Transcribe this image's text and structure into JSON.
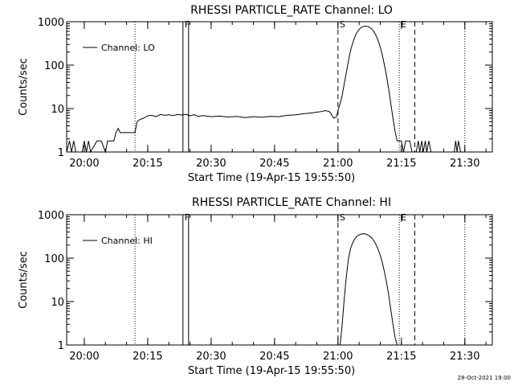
{
  "footer": {
    "timestamp": "28-Oct-2021 19:00"
  },
  "chart_data": [
    {
      "type": "line",
      "title": "RHESSI PARTICLE_RATE Channel: LO",
      "xlabel": "Start Time (19-Apr-15 19:55:50)",
      "ylabel": "Counts/sec",
      "y_scale": "log",
      "ylim": [
        1,
        1000
      ],
      "xlim": [
        "19:55:50",
        "21:36:30"
      ],
      "x_ticks": [
        "20:00",
        "20:15",
        "20:30",
        "20:45",
        "21:00",
        "21:15",
        "21:30"
      ],
      "y_ticks": [
        "1",
        "10",
        "100",
        "1000"
      ],
      "legend": {
        "position": "top-left",
        "entries": [
          "Channel: LO"
        ]
      },
      "markers": [
        {
          "label": "F",
          "time": "20:23:20",
          "style": "solid"
        },
        {
          "label": "",
          "time": "20:24:40",
          "style": "solid"
        },
        {
          "label": "S",
          "time": "21:00:00",
          "style": "dashed"
        },
        {
          "label": "E",
          "time": "21:14:30",
          "style": "dotted"
        },
        {
          "label": "",
          "time": "21:18:10",
          "style": "dashed"
        },
        {
          "label": "",
          "time": "20:12:00",
          "style": "dotted"
        },
        {
          "label": "",
          "time": "21:30:00",
          "style": "dotted"
        }
      ],
      "series": [
        {
          "name": "Channel: LO",
          "points": [
            [
              "19:55:50",
              1
            ],
            [
              "19:56:30",
              1.8
            ],
            [
              "19:57:00",
              1
            ],
            [
              "19:57:30",
              1.8
            ],
            [
              "19:58:00",
              1
            ],
            [
              "19:59:30",
              1
            ],
            [
              "20:00:00",
              1.8
            ],
            [
              "20:00:30",
              1
            ],
            [
              "20:01:00",
              1.8
            ],
            [
              "20:01:30",
              1
            ],
            [
              "20:03:00",
              1.8
            ],
            [
              "20:04:00",
              1.8
            ],
            [
              "20:05:00",
              1
            ],
            [
              "20:05:30",
              1.8
            ],
            [
              "20:06:00",
              1.8
            ],
            [
              "20:07:00",
              1.8
            ],
            [
              "20:07:30",
              2.8
            ],
            [
              "20:08:00",
              3.5
            ],
            [
              "20:08:30",
              2.8
            ],
            [
              "20:10:00",
              2.8
            ],
            [
              "20:12:00",
              2.8
            ],
            [
              "20:12:30",
              5
            ],
            [
              "20:13:00",
              5.5
            ],
            [
              "20:14:00",
              6
            ],
            [
              "20:15:00",
              6.8
            ],
            [
              "20:16:00",
              7
            ],
            [
              "20:17:00",
              6.5
            ],
            [
              "20:18:00",
              7.3
            ],
            [
              "20:19:00",
              7
            ],
            [
              "20:20:00",
              7.2
            ],
            [
              "20:21:00",
              6.9
            ],
            [
              "20:22:00",
              7.3
            ],
            [
              "20:23:00",
              7.1
            ],
            [
              "20:24:00",
              7.4
            ],
            [
              "20:25:00",
              6.8
            ],
            [
              "20:26:00",
              7.2
            ],
            [
              "20:27:00",
              6.6
            ],
            [
              "20:28:00",
              6.9
            ],
            [
              "20:30:00",
              6.5
            ],
            [
              "20:32:00",
              6.7
            ],
            [
              "20:34:00",
              6.4
            ],
            [
              "20:36:00",
              6.6
            ],
            [
              "20:38:00",
              6.2
            ],
            [
              "20:40:00",
              6.5
            ],
            [
              "20:42:00",
              6.3
            ],
            [
              "20:44:00",
              6.6
            ],
            [
              "20:46:00",
              6.5
            ],
            [
              "20:48:00",
              7
            ],
            [
              "20:50:00",
              7.2
            ],
            [
              "20:52:00",
              7.6
            ],
            [
              "20:54:00",
              8
            ],
            [
              "20:56:00",
              8.5
            ],
            [
              "20:57:00",
              9
            ],
            [
              "20:58:00",
              8.5
            ],
            [
              "20:59:00",
              6
            ],
            [
              "20:59:40",
              6.5
            ],
            [
              "21:00:00",
              9
            ],
            [
              "21:00:30",
              13
            ],
            [
              "21:01:00",
              20
            ],
            [
              "21:01:30",
              38
            ],
            [
              "21:02:00",
              70
            ],
            [
              "21:02:30",
              130
            ],
            [
              "21:03:00",
              220
            ],
            [
              "21:03:30",
              330
            ],
            [
              "21:04:00",
              450
            ],
            [
              "21:04:30",
              570
            ],
            [
              "21:05:00",
              670
            ],
            [
              "21:05:30",
              740
            ],
            [
              "21:06:00",
              780
            ],
            [
              "21:06:30",
              790
            ],
            [
              "21:07:00",
              780
            ],
            [
              "21:07:30",
              740
            ],
            [
              "21:08:00",
              680
            ],
            [
              "21:08:30",
              590
            ],
            [
              "21:09:00",
              480
            ],
            [
              "21:09:30",
              370
            ],
            [
              "21:10:00",
              260
            ],
            [
              "21:10:30",
              170
            ],
            [
              "21:11:00",
              100
            ],
            [
              "21:11:30",
              55
            ],
            [
              "21:12:00",
              28
            ],
            [
              "21:12:30",
              13
            ],
            [
              "21:13:00",
              6
            ],
            [
              "21:13:30",
              3
            ],
            [
              "21:14:00",
              1.8
            ],
            [
              "21:15:00",
              1.8
            ],
            [
              "21:15:30",
              1
            ],
            [
              "21:16:00",
              1.8
            ],
            [
              "21:17:00",
              1.8
            ],
            [
              "21:17:30",
              1
            ],
            [
              "21:18:30",
              1
            ],
            [
              "21:19:00",
              1.8
            ],
            [
              "21:19:20",
              1
            ],
            [
              "21:19:50",
              1.8
            ],
            [
              "21:20:10",
              1
            ],
            [
              "21:20:40",
              1.8
            ],
            [
              "21:21:00",
              1
            ],
            [
              "21:21:30",
              1.8
            ],
            [
              "21:22:00",
              1
            ],
            [
              "21:27:30",
              1
            ],
            [
              "21:27:50",
              1.8
            ],
            [
              "21:28:10",
              1
            ],
            [
              "21:28:30",
              1.8
            ],
            [
              "21:29:00",
              1
            ]
          ]
        }
      ]
    },
    {
      "type": "line",
      "title": "RHESSI PARTICLE_RATE Channel: HI",
      "xlabel": "Start Time (19-Apr-15 19:55:50)",
      "ylabel": "Counts/sec",
      "y_scale": "log",
      "ylim": [
        1,
        1000
      ],
      "xlim": [
        "19:55:50",
        "21:36:30"
      ],
      "x_ticks": [
        "20:00",
        "20:15",
        "20:30",
        "20:45",
        "21:00",
        "21:15",
        "21:30"
      ],
      "y_ticks": [
        "1",
        "10",
        "100",
        "1000"
      ],
      "legend": {
        "position": "top-left",
        "entries": [
          "Channel: HI"
        ]
      },
      "markers": [
        {
          "label": "F",
          "time": "20:23:20",
          "style": "solid"
        },
        {
          "label": "",
          "time": "20:24:40",
          "style": "solid"
        },
        {
          "label": "S",
          "time": "21:00:00",
          "style": "dashed"
        },
        {
          "label": "E",
          "time": "21:14:30",
          "style": "dotted"
        },
        {
          "label": "",
          "time": "21:18:10",
          "style": "dashed"
        },
        {
          "label": "",
          "time": "20:12:00",
          "style": "dotted"
        },
        {
          "label": "",
          "time": "21:30:00",
          "style": "dotted"
        }
      ],
      "series": [
        {
          "name": "Channel: HI",
          "points": [
            [
              "21:00:30",
              1
            ],
            [
              "21:01:00",
              3
            ],
            [
              "21:01:30",
              12
            ],
            [
              "21:02:00",
              40
            ],
            [
              "21:02:30",
              100
            ],
            [
              "21:03:00",
              170
            ],
            [
              "21:03:30",
              230
            ],
            [
              "21:04:00",
              280
            ],
            [
              "21:04:30",
              320
            ],
            [
              "21:05:00",
              345
            ],
            [
              "21:05:30",
              360
            ],
            [
              "21:06:00",
              365
            ],
            [
              "21:06:30",
              360
            ],
            [
              "21:07:00",
              345
            ],
            [
              "21:07:30",
              320
            ],
            [
              "21:08:00",
              290
            ],
            [
              "21:08:30",
              250
            ],
            [
              "21:09:00",
              205
            ],
            [
              "21:09:30",
              160
            ],
            [
              "21:10:00",
              115
            ],
            [
              "21:10:30",
              78
            ],
            [
              "21:11:00",
              48
            ],
            [
              "21:11:30",
              27
            ],
            [
              "21:12:00",
              14
            ],
            [
              "21:12:30",
              6.5
            ],
            [
              "21:13:00",
              3
            ],
            [
              "21:13:30",
              1.5
            ],
            [
              "21:14:00",
              1
            ]
          ]
        }
      ]
    }
  ]
}
